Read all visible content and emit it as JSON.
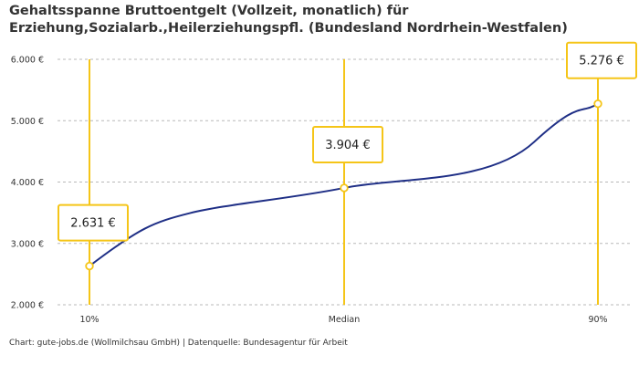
{
  "header": {
    "title_line1": "Gehaltsspanne Bruttoentgelt (Vollzeit, monatlich) für",
    "title_line2": "Erziehung,Sozialarb.,Heilerziehungspfl. (Bundesland Nordrhein-Westfalen)"
  },
  "footer": {
    "source": "Chart: gute-jobs.de (Wollmilchsau GmbH) | Datenquelle: Bundesagentur für Arbeit"
  },
  "chart_data": {
    "type": "line",
    "title": "Gehaltsspanne Bruttoentgelt (Vollzeit, monatlich) für Erziehung,Sozialarb.,Heilerziehungspfl. (Bundesland Nordrhein-Westfalen)",
    "categories": [
      "10%",
      "Median",
      "90%"
    ],
    "values": [
      2631,
      3904,
      5276
    ],
    "value_labels": [
      "2.631 €",
      "3.904 €",
      "5.276 €"
    ],
    "y_ticks": [
      2000,
      3000,
      4000,
      5000,
      6000
    ],
    "y_tick_labels": [
      "2.000 €",
      "3.000 €",
      "4.000 €",
      "5.000 €",
      "6.000 €"
    ],
    "ylim": [
      2000,
      6000
    ],
    "xlabel": "",
    "ylabel": "",
    "grid": "horizontal dashed",
    "colors": {
      "line": "#1f2f86",
      "accent": "#f5c518",
      "grid": "#b8b8b8",
      "marker_fill": "#ffffff"
    }
  }
}
